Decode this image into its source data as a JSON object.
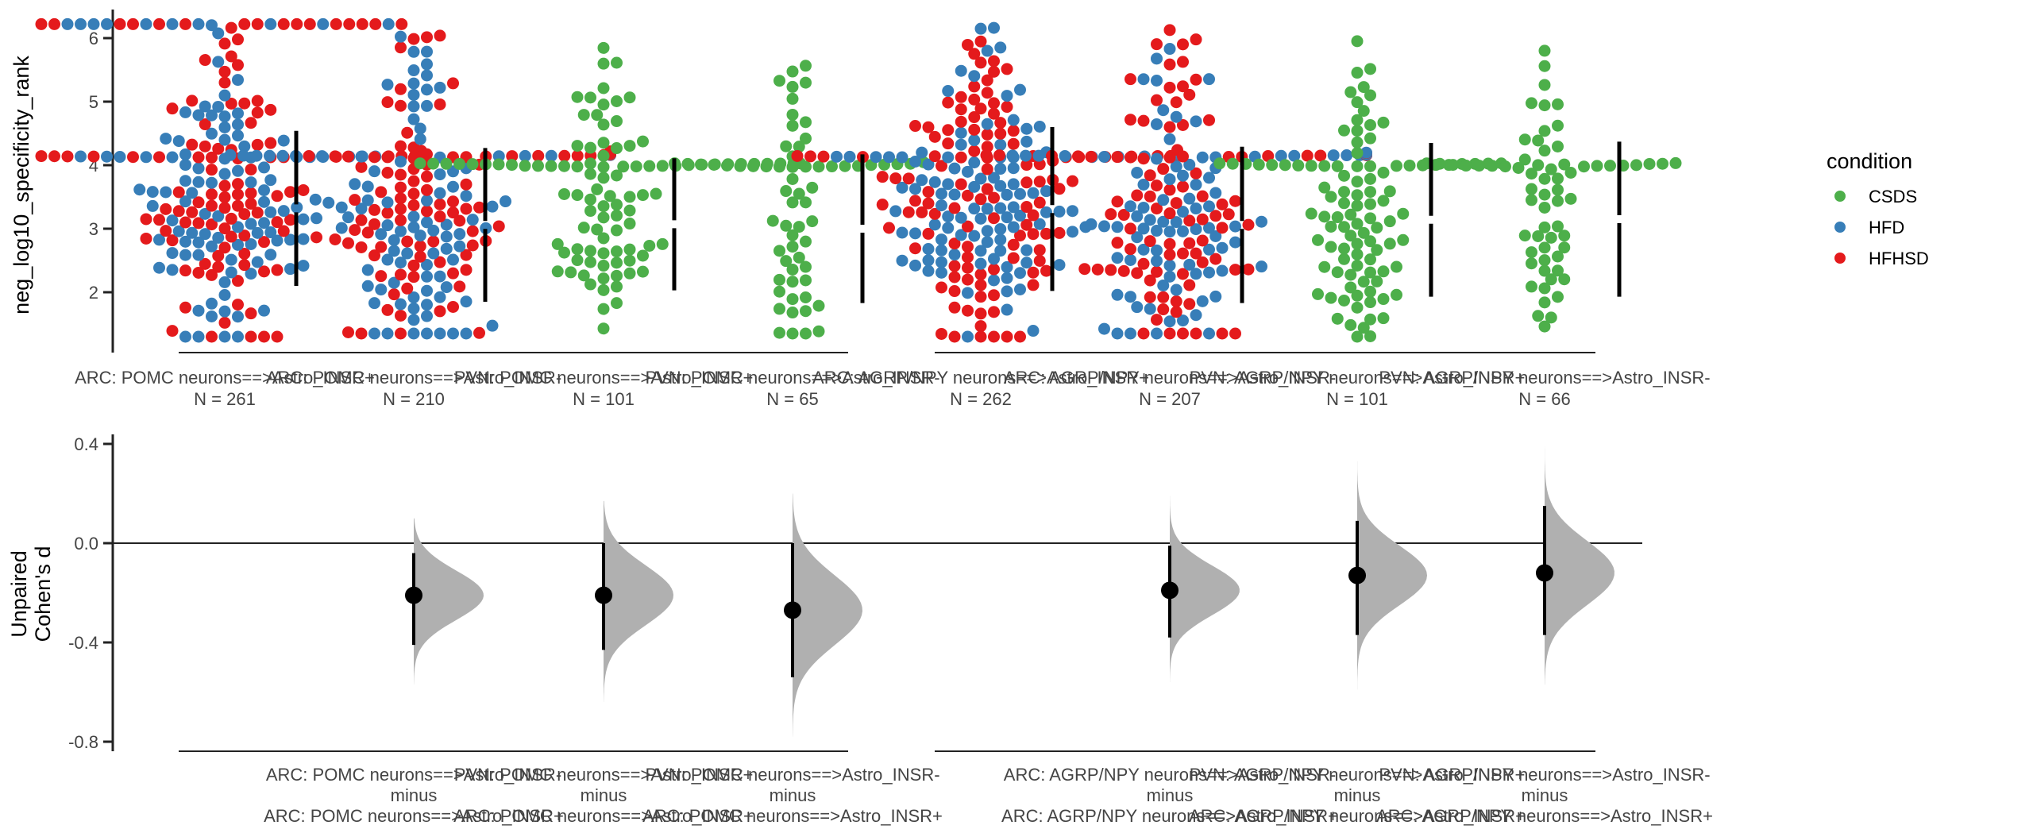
{
  "chart_data": [
    {
      "type": "scatter",
      "subtype": "swarm",
      "ylabel": "neg_log10_specificity_rank",
      "ylim": [
        1.2,
        6.45
      ],
      "yticks": [
        2,
        3,
        4,
        5,
        6
      ],
      "legend": {
        "title": "condition",
        "placement": "right",
        "entries": [
          {
            "name": "CSDS",
            "color": "#4daf4a"
          },
          {
            "name": "HFD",
            "color": "#377eb8"
          },
          {
            "name": "HFHSD",
            "color": "#e41a1c"
          }
        ]
      },
      "groups": [
        {
          "categories": [
            0,
            1,
            2,
            3
          ]
        },
        {
          "categories": [
            4,
            5,
            6,
            7
          ]
        }
      ],
      "categories": [
        {
          "label": "ARC: POMC neurons==>Astro_INSR+",
          "n_label": "N = 261",
          "n": 261,
          "composition": {
            "HFD": 130,
            "HFHSD": 131
          },
          "mean": 3.32,
          "sd": 1.22,
          "min": 1.3,
          "max": 6.22,
          "mode_bands": [
            4.15,
            3.1,
            2.7,
            6.22
          ]
        },
        {
          "label": "ARC: POMC neurons==>Astro_INSR-",
          "n_label": "N = 210",
          "n": 210,
          "composition": {
            "HFD": 105,
            "HFHSD": 105
          },
          "mean": 3.06,
          "sd": 1.21,
          "min": 1.35,
          "max": 6.2,
          "mode_bands": [
            4.15,
            2.4,
            1.8
          ]
        },
        {
          "label": "PVN: POMC neurons==>Astro_INSR+",
          "n_label": "N = 101",
          "n": 101,
          "composition": {
            "CSDS": 101
          },
          "mean": 3.07,
          "sd": 1.04,
          "min": 1.3,
          "max": 6.0,
          "mode_bands": [
            4.0,
            3.2,
            2.3
          ]
        },
        {
          "label": "PVN: POMC neurons==>Astro_INSR-",
          "n_label": "N = 65",
          "n": 65,
          "composition": {
            "CSDS": 65
          },
          "mean": 3.0,
          "sd": 1.17,
          "min": 1.35,
          "max": 6.0,
          "mode_bands": [
            4.0,
            2.3
          ]
        },
        {
          "label": "ARC: AGRP/NPY neurons==>Astro_INSR+",
          "n_label": "N = 262",
          "n": 262,
          "composition": {
            "HFD": 131,
            "HFHSD": 131
          },
          "mean": 3.31,
          "sd": 1.29,
          "min": 1.3,
          "max": 6.22,
          "mode_bands": [
            4.15,
            2.5,
            6.22
          ]
        },
        {
          "label": "ARC: AGRP/NPY neurons==>Astro_INSR-",
          "n_label": "N = 207",
          "n": 207,
          "composition": {
            "HFD": 104,
            "HFHSD": 103
          },
          "mean": 3.06,
          "sd": 1.23,
          "min": 1.35,
          "max": 6.15,
          "mode_bands": [
            4.15,
            2.3
          ]
        },
        {
          "label": "PVN: AGRP/NPY neurons==>Astro_INSR+",
          "n_label": "N = 101",
          "n": 101,
          "composition": {
            "CSDS": 101
          },
          "mean": 3.14,
          "sd": 1.21,
          "min": 1.3,
          "max": 6.0,
          "mode_bands": [
            4.0,
            2.35
          ]
        },
        {
          "label": "PVN: AGRP/NPY neurons==>Astro_INSR-",
          "n_label": "N = 66",
          "n": 66,
          "composition": {
            "CSDS": 66
          },
          "mean": 3.15,
          "sd": 1.22,
          "min": 1.3,
          "max": 6.0,
          "mode_bands": [
            4.0,
            2.3
          ]
        }
      ]
    },
    {
      "type": "scatter",
      "subtype": "effect-size-with-bootstrap-distribution",
      "ylabel": "Unpaired\nCohen's d",
      "ylabel_lines": [
        "Unpaired",
        "Cohen's d"
      ],
      "ylim": [
        -0.82,
        0.45
      ],
      "yticks": [
        0.4,
        0.0,
        -0.4,
        -0.8
      ],
      "ytick_labels": [
        "0.4",
        "0.0",
        "-0.4",
        "-0.8"
      ],
      "reference_line": 0.0,
      "comparisons": [
        {
          "category_index": 1,
          "label_lines": [
            "ARC: POMC neurons==>Astro_INSR-",
            "minus",
            "ARC: POMC neurons==>Astro_INSR+"
          ],
          "d": -0.21,
          "ci": [
            -0.41,
            -0.04
          ],
          "dist_range": [
            -0.57,
            0.1
          ],
          "dist_sd": 0.1
        },
        {
          "category_index": 2,
          "label_lines": [
            "PVN: POMC neurons==>Astro_INSR+",
            "minus",
            "ARC: POMC neurons==>Astro_INSR+"
          ],
          "d": -0.21,
          "ci": [
            -0.43,
            0.0
          ],
          "dist_range": [
            -0.64,
            0.17
          ],
          "dist_sd": 0.12
        },
        {
          "category_index": 3,
          "label_lines": [
            "PVN: POMC neurons==>Astro_INSR-",
            "minus",
            "ARC: POMC neurons==>Astro_INSR+"
          ],
          "d": -0.27,
          "ci": [
            -0.54,
            0.0
          ],
          "dist_range": [
            -0.78,
            0.2
          ],
          "dist_sd": 0.14
        },
        {
          "category_index": 5,
          "label_lines": [
            "ARC: AGRP/NPY neurons==>Astro_INSR-",
            "minus",
            "ARC: AGRP/NPY neurons==>Astro_INSR+"
          ],
          "d": -0.19,
          "ci": [
            -0.38,
            -0.01
          ],
          "dist_range": [
            -0.56,
            0.19
          ],
          "dist_sd": 0.1
        },
        {
          "category_index": 6,
          "label_lines": [
            "PVN: AGRP/NPY neurons==>Astro_INSR+",
            "minus",
            "ARC: AGRP/NPY neurons==>Astro_INSR+"
          ],
          "d": -0.13,
          "ci": [
            -0.37,
            0.09
          ],
          "dist_range": [
            -0.59,
            0.33
          ],
          "dist_sd": 0.12
        },
        {
          "category_index": 7,
          "label_lines": [
            "PVN: AGRP/NPY neurons==>Astro_INSR-",
            "minus",
            "ARC: AGRP/NPY neurons==>Astro_INSR+"
          ],
          "d": -0.12,
          "ci": [
            -0.37,
            0.15
          ],
          "dist_range": [
            -0.57,
            0.41
          ],
          "dist_sd": 0.13
        }
      ]
    }
  ]
}
